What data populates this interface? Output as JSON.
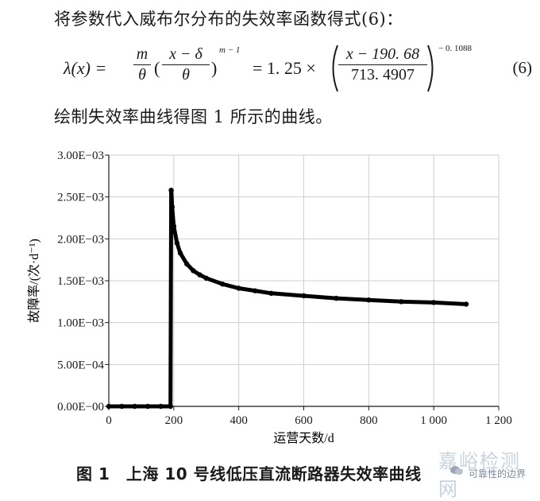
{
  "text": {
    "intro": "将参数代入威布尔分布的失效率函数得式(6)：",
    "after": "绘制失效率曲线得图 1 所示的曲线。",
    "caption": "图 1　上海 10 号线低压直流断路器失效率曲线"
  },
  "equation": {
    "lhs": "λ(x) =",
    "frac1_num": "m",
    "frac1_den": "θ",
    "open_paren": "(",
    "frac2_num": "x − δ",
    "frac2_den": "θ",
    "close_paren": ")",
    "exp1": "m − 1",
    "middle": "= 1. 25 ×",
    "frac3_num": "x − 190. 68",
    "frac3_den": "713. 4907",
    "exp2": "− 0. 1088",
    "number": "(6)"
  },
  "chart_data": {
    "type": "line",
    "xlabel": "运营天数/d",
    "ylabel": "故障率/(次·d⁻¹)",
    "xlim": [
      0,
      1200
    ],
    "ylim": [
      0,
      0.003
    ],
    "x_ticks": [
      0,
      200,
      400,
      600,
      800,
      1000,
      1200
    ],
    "x_tick_labels": [
      "0",
      "200",
      "400",
      "600",
      "800",
      "1 000",
      "1 200"
    ],
    "y_ticks": [
      0,
      0.0005,
      0.001,
      0.0015,
      0.002,
      0.0025,
      0.003
    ],
    "y_tick_labels": [
      "0.00E−00",
      "5.00E−04",
      "1.00E−03",
      "1.50E−03",
      "2.00E−03",
      "2.50E−03",
      "3.00E−03"
    ],
    "grid": true,
    "series": [
      {
        "color": "#000000",
        "points": [
          [
            0,
            0
          ],
          [
            40,
            0
          ],
          [
            80,
            0
          ],
          [
            120,
            0
          ],
          [
            160,
            0
          ],
          [
            190,
            0
          ],
          [
            192,
            0.00258
          ],
          [
            195,
            0.00238
          ],
          [
            200,
            0.00215
          ],
          [
            210,
            0.00195
          ],
          [
            220,
            0.00183
          ],
          [
            240,
            0.0017
          ],
          [
            260,
            0.00162
          ],
          [
            280,
            0.00157
          ],
          [
            300,
            0.00153
          ],
          [
            350,
            0.00146
          ],
          [
            400,
            0.00141
          ],
          [
            450,
            0.00138
          ],
          [
            500,
            0.00135
          ],
          [
            600,
            0.00132
          ],
          [
            700,
            0.00129
          ],
          [
            800,
            0.00127
          ],
          [
            900,
            0.00125
          ],
          [
            1000,
            0.00124
          ],
          [
            1100,
            0.00122
          ]
        ]
      }
    ]
  },
  "watermark": {
    "main": "嘉峪检测网",
    "sub": "可靠性的边界"
  }
}
